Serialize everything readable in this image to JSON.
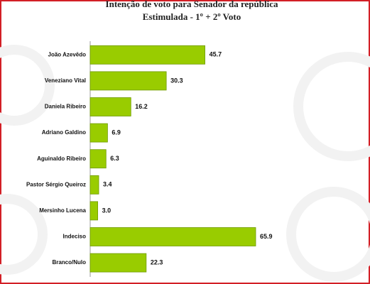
{
  "chart_data": {
    "type": "bar",
    "orientation": "horizontal",
    "title": "Intenção de voto para Senador da república",
    "subtitle": "Estimulada - 1º + 2º Voto",
    "categories": [
      "João Azevêdo",
      "Veneziano Vital",
      "Daniela Ribeiro",
      "Adriano Galdino",
      "Aguinaldo Ribeiro",
      "Pastor Sérgio Queiroz",
      "Mersinho Lucena",
      "Indeciso",
      "Branco/Nulo"
    ],
    "values": [
      45.7,
      30.3,
      16.2,
      6.9,
      6.3,
      3.4,
      3.0,
      65.9,
      22.3
    ],
    "value_labels": [
      "45.7",
      "30.3",
      "16.2",
      "6.9",
      "6.3",
      "3.4",
      "3.0",
      "65.9",
      "22.3"
    ],
    "color": "#99cc00"
  }
}
